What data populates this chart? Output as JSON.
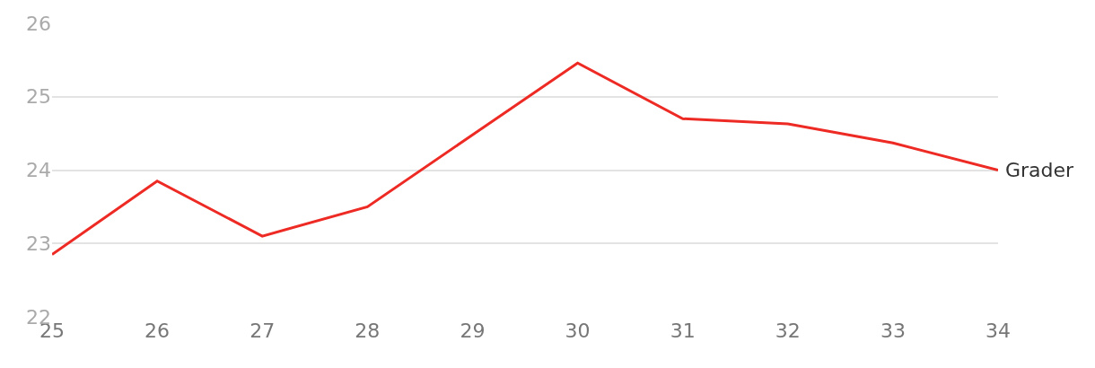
{
  "chart_data": {
    "type": "line",
    "x": [
      25,
      26,
      27,
      28,
      29,
      30,
      31,
      32,
      33,
      34
    ],
    "series": [
      {
        "name": "Grader",
        "color": "#ee2a24",
        "values": [
          22.85,
          23.85,
          23.1,
          23.5,
          24.48,
          25.46,
          24.7,
          24.63,
          24.37,
          24.0
        ]
      }
    ],
    "xlim": [
      25,
      34
    ],
    "xticks": [
      25,
      26,
      27,
      28,
      29,
      30,
      31,
      32,
      33,
      34
    ],
    "ylim": [
      22,
      26
    ],
    "yticks": [
      22,
      23,
      24,
      25,
      26
    ],
    "grid": "y",
    "legend": false,
    "marker": "none",
    "line_style": "solid"
  }
}
